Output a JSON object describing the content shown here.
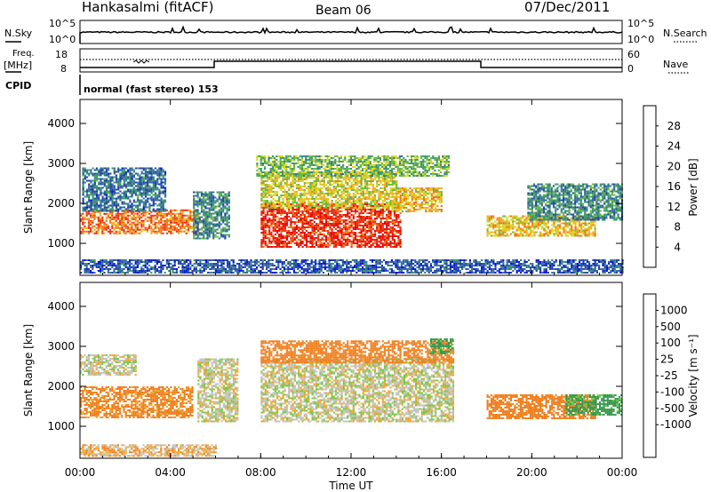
{
  "header": {
    "station": "Hankasalmi (fitACF)",
    "beam": "Beam 06",
    "date": "07/Dec/2011"
  },
  "sky_panel": {
    "left_label": "N.Sky",
    "right_label": "N.Search",
    "left_ticks": [
      "10^5",
      "10^0"
    ],
    "right_ticks": [
      "10^5",
      "10^0"
    ]
  },
  "freq_panel": {
    "left_label_1": "Freq.",
    "left_label_2": "[MHz]",
    "right_label": "Nave",
    "left_ticks": [
      "18",
      "8"
    ],
    "right_ticks": [
      "60",
      "0"
    ]
  },
  "cpid": {
    "label": "CPID",
    "text": "normal (fast stereo) 153"
  },
  "colors": {
    "power": [
      "#0a14e6",
      "#2244a8",
      "#3a6fa0",
      "#3a9a6a",
      "#6ab846",
      "#d8d820",
      "#f2b020",
      "#f07818",
      "#f03010",
      "#e60a0a"
    ],
    "velocity": [
      "#ff0000",
      "#f05020",
      "#f08020",
      "#f0a830",
      "#c8c8c0",
      "#c8c8c0",
      "#78c848",
      "#3a9a50",
      "#2a6aa8",
      "#1a2ab8"
    ],
    "ground": "#c4c4bc"
  },
  "chart_data": [
    {
      "type": "heatmap",
      "name": "power",
      "xlabel": "",
      "ylabel": "Slant Range [km]",
      "y_ticks": [
        "1000",
        "2000",
        "3000",
        "4000"
      ],
      "ylim": [
        200,
        4600
      ],
      "colorbar_label": "Power [dB]",
      "colorbar_ticks": [
        "4",
        "8",
        "12",
        "16",
        "20",
        "24",
        "28"
      ],
      "colorbar_range": [
        0,
        32
      ],
      "regions": [
        {
          "x0": 0.0,
          "x1": 5.2,
          "y0": 1250,
          "y1": 1850,
          "value": 24
        },
        {
          "x0": 0.1,
          "x1": 3.8,
          "y0": 1800,
          "y1": 2900,
          "value": 8
        },
        {
          "x0": 5.0,
          "x1": 6.6,
          "y0": 1100,
          "y1": 2300,
          "value": 10
        },
        {
          "x0": 8.0,
          "x1": 14.2,
          "y0": 900,
          "y1": 2000,
          "value": 28
        },
        {
          "x0": 8.0,
          "x1": 14.0,
          "y0": 1900,
          "y1": 2800,
          "value": 18
        },
        {
          "x0": 7.8,
          "x1": 16.3,
          "y0": 2700,
          "y1": 3200,
          "value": 14
        },
        {
          "x0": 13.8,
          "x1": 16.0,
          "y0": 1800,
          "y1": 2400,
          "value": 20
        },
        {
          "x0": 18.0,
          "x1": 22.8,
          "y0": 1200,
          "y1": 1700,
          "value": 20
        },
        {
          "x0": 19.8,
          "x1": 24.0,
          "y0": 1600,
          "y1": 2500,
          "value": 10
        },
        {
          "x0": 0.0,
          "x1": 24.0,
          "y0": 250,
          "y1": 600,
          "value": 6
        }
      ]
    },
    {
      "type": "heatmap",
      "name": "velocity",
      "xlabel": "Time UT",
      "ylabel": "Slant Range [km]",
      "y_ticks": [
        "1000",
        "2000",
        "3000",
        "4000"
      ],
      "ylim": [
        200,
        4600
      ],
      "x_ticks": [
        "00:00",
        "04:00",
        "08:00",
        "12:00",
        "16:00",
        "20:00",
        "00:00"
      ],
      "xlim": [
        0,
        24
      ],
      "colorbar_label": "Velocity [m s⁻¹]",
      "colorbar_ticks": [
        "1000",
        "500",
        "100",
        "25",
        "-25",
        "-100",
        "-500",
        "-1000"
      ],
      "regions": [
        {
          "x0": 0.0,
          "x1": 5.0,
          "y0": 1200,
          "y1": 2000,
          "value": -150
        },
        {
          "x0": 0.0,
          "x1": 2.5,
          "y0": 2300,
          "y1": 2800,
          "value": 0
        },
        {
          "x0": 5.2,
          "x1": 7.0,
          "y0": 1100,
          "y1": 2700,
          "value": 0
        },
        {
          "x0": 8.0,
          "x1": 16.5,
          "y0": 1100,
          "y1": 2700,
          "value": 0
        },
        {
          "x0": 8.0,
          "x1": 16.5,
          "y0": 2600,
          "y1": 3150,
          "value": -200
        },
        {
          "x0": 15.5,
          "x1": 16.5,
          "y0": 2800,
          "y1": 3200,
          "value": 150
        },
        {
          "x0": 18.0,
          "x1": 22.8,
          "y0": 1200,
          "y1": 1800,
          "value": -200
        },
        {
          "x0": 21.5,
          "x1": 24.0,
          "y0": 1300,
          "y1": 1800,
          "value": 150
        },
        {
          "x0": 0.0,
          "x1": 6.0,
          "y0": 250,
          "y1": 550,
          "value": -60
        }
      ]
    }
  ]
}
